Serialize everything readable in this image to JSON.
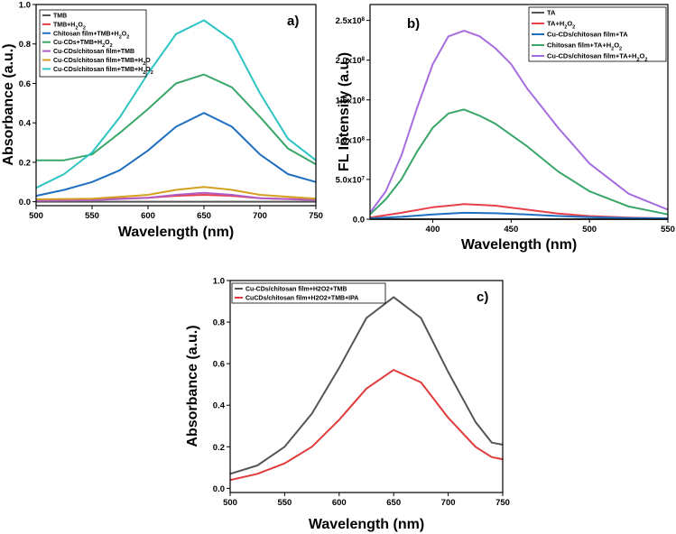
{
  "chart_data": [
    {
      "type": "line",
      "panel_label": "a)",
      "xlabel": "Wavelength (nm)",
      "ylabel": "Absorbance (a.u.)",
      "xlim": [
        500,
        750
      ],
      "ylim": [
        -0.02,
        1.0
      ],
      "xticks": [
        "500",
        "550",
        "600",
        "650",
        "700",
        "750"
      ],
      "yticks": [
        "0.0",
        "0.2",
        "0.4",
        "0.6",
        "0.8",
        "1.0"
      ],
      "legend_position": "top-left",
      "series": [
        {
          "name": "TMB",
          "legend": [
            "TMB"
          ],
          "color": "#555555",
          "x": [
            500,
            550,
            600,
            650,
            700,
            750
          ],
          "y": [
            0.0,
            0.0,
            0.0,
            0.0,
            0.0,
            0.0
          ]
        },
        {
          "name": "TMB+H2O2",
          "legend": [
            "TMB+H",
            "2",
            "O",
            "2",
            ""
          ],
          "color": "#e8404a",
          "x": [
            500,
            550,
            600,
            625,
            650,
            675,
            700,
            750
          ],
          "y": [
            0.01,
            0.012,
            0.02,
            0.03,
            0.035,
            0.03,
            0.018,
            0.01
          ]
        },
        {
          "name": "Chitosan film+TMB+H2O2",
          "legend": [
            "Chitosan film+TMB+H",
            "2",
            "O",
            "2",
            ""
          ],
          "color": "#1f6fc0",
          "x": [
            500,
            525,
            550,
            575,
            600,
            625,
            650,
            675,
            700,
            725,
            750
          ],
          "y": [
            0.03,
            0.06,
            0.1,
            0.16,
            0.26,
            0.38,
            0.45,
            0.38,
            0.24,
            0.14,
            0.1
          ]
        },
        {
          "name": "Cu-CDs+TMB+H2O2",
          "legend": [
            "Cu-CDs+TMB+H",
            "2",
            "O",
            "2",
            ""
          ],
          "color": "#3aa66a",
          "x": [
            500,
            525,
            550,
            575,
            600,
            625,
            650,
            675,
            700,
            725,
            750
          ],
          "y": [
            0.21,
            0.21,
            0.24,
            0.35,
            0.47,
            0.6,
            0.645,
            0.58,
            0.43,
            0.27,
            0.19
          ]
        },
        {
          "name": "Cu-CDs/chitosan film+TMB",
          "legend": [
            "Cu-CDs/chitosan film+TMB"
          ],
          "color": "#b05ec6",
          "x": [
            500,
            550,
            600,
            625,
            650,
            675,
            700,
            750
          ],
          "y": [
            0.005,
            0.008,
            0.02,
            0.035,
            0.045,
            0.035,
            0.018,
            0.008
          ]
        },
        {
          "name": "Cu-CDs/chitosan film+TMB+H2O",
          "legend": [
            "Cu-CDs/chitosan film+TMB+H",
            "2",
            "O",
            "",
            ""
          ],
          "color": "#d4a020",
          "x": [
            500,
            550,
            600,
            625,
            650,
            675,
            700,
            750
          ],
          "y": [
            0.012,
            0.015,
            0.035,
            0.06,
            0.075,
            0.06,
            0.035,
            0.015
          ]
        },
        {
          "name": "Cu-CDs/chitosan film+TMB+H2O2",
          "legend": [
            "Cu-CDs/chitosan film+TMB+H",
            "2",
            "O",
            "2",
            ""
          ],
          "color": "#2ec4c4",
          "x": [
            500,
            525,
            550,
            575,
            600,
            625,
            650,
            675,
            700,
            725,
            750
          ],
          "y": [
            0.07,
            0.14,
            0.25,
            0.43,
            0.65,
            0.85,
            0.92,
            0.82,
            0.55,
            0.32,
            0.21
          ]
        }
      ]
    },
    {
      "type": "line",
      "panel_label": "b)",
      "xlabel": "Wavelength (nm)",
      "ylabel": "FL Intensity (a.u.)",
      "xlim": [
        360,
        550
      ],
      "ylim": [
        0,
        270000000.0
      ],
      "xticks": [
        "400",
        "450",
        "500",
        "550"
      ],
      "yticks": [
        {
          "value": 0,
          "mant": "0.0",
          "sup": ""
        },
        {
          "value": 50000000.0,
          "mant": "5.0x10",
          "sup": "7"
        },
        {
          "value": 100000000.0,
          "mant": "1.0x10",
          "sup": "8"
        },
        {
          "value": 150000000.0,
          "mant": "1.5x10",
          "sup": "8"
        },
        {
          "value": 200000000.0,
          "mant": "2.0x10",
          "sup": "8"
        },
        {
          "value": 250000000.0,
          "mant": "2.5x10",
          "sup": "8"
        }
      ],
      "legend_position": "top-right",
      "series": [
        {
          "name": "TA",
          "legend": [
            "TA"
          ],
          "color": "#555555",
          "x": [
            360,
            400,
            450,
            500,
            550
          ],
          "y": [
            0,
            0,
            0,
            0,
            0
          ]
        },
        {
          "name": "TA+H2O2",
          "legend": [
            "TA+H",
            "2",
            "O",
            "2",
            ""
          ],
          "color": "#e8404a",
          "x": [
            360,
            380,
            400,
            420,
            440,
            460,
            480,
            500,
            525,
            550
          ],
          "y": [
            2000000.0,
            8000000.0,
            15000000.0,
            19000000.0,
            17000000.0,
            12000000.0,
            7000000.0,
            4000000.0,
            2000000.0,
            1000000.0
          ]
        },
        {
          "name": "Cu-CDs/chitosan film+TA",
          "legend": [
            "Cu-CDs/chitosan film+TA"
          ],
          "color": "#1f6fc0",
          "x": [
            360,
            380,
            400,
            420,
            440,
            460,
            480,
            500,
            525,
            550
          ],
          "y": [
            1000000.0,
            3000000.0,
            6000000.0,
            8000000.0,
            7500000.0,
            6000000.0,
            4000000.0,
            2500000.0,
            1500000.0,
            1000000.0
          ]
        },
        {
          "name": "Chitosan film+TA+H2O2",
          "legend": [
            "Chitosan film+TA+H",
            "2",
            "O",
            "2",
            ""
          ],
          "color": "#3aa66a",
          "x": [
            360,
            370,
            380,
            390,
            400,
            410,
            420,
            430,
            440,
            460,
            480,
            500,
            525,
            550
          ],
          "y": [
            6000000.0,
            25000000.0,
            50000000.0,
            85000000.0,
            115000000.0,
            133000000.0,
            138000000.0,
            130000000.0,
            120000000.0,
            92000000.0,
            60000000.0,
            35000000.0,
            16000000.0,
            6000000.0
          ]
        },
        {
          "name": "Cu-CDs/chitosan film+TA+H2O2",
          "legend": [
            "Cu-CDs/chitosan film+TA+H",
            "2",
            "O",
            "2",
            ""
          ],
          "color": "#a66de0",
          "x": [
            360,
            370,
            380,
            390,
            400,
            410,
            420,
            430,
            440,
            450,
            460,
            470,
            480,
            500,
            525,
            550
          ],
          "y": [
            8000000.0,
            35000000.0,
            80000000.0,
            140000000.0,
            195000000.0,
            230000000.0,
            237000000.0,
            230000000.0,
            215000000.0,
            195000000.0,
            165000000.0,
            140000000.0,
            115000000.0,
            70000000.0,
            32000000.0,
            12000000.0
          ]
        }
      ]
    },
    {
      "type": "line",
      "panel_label": "c)",
      "xlabel": "Wavelength (nm)",
      "ylabel": "Absorbance (a.u.)",
      "xlim": [
        500,
        750
      ],
      "ylim": [
        -0.02,
        1.0
      ],
      "xticks": [
        "500",
        "550",
        "600",
        "650",
        "700",
        "750"
      ],
      "yticks": [
        "0.0",
        "0.2",
        "0.4",
        "0.6",
        "0.8",
        "1.0"
      ],
      "legend_position": "top-left",
      "series": [
        {
          "name": "Cu-CDs/chitosan film+H2O2+TMB",
          "legend": [
            "Cu-CDs/chitosan film+H2O2+TMB"
          ],
          "color": "#555555",
          "x": [
            500,
            525,
            550,
            575,
            600,
            625,
            650,
            675,
            700,
            725,
            740,
            750
          ],
          "y": [
            0.07,
            0.11,
            0.2,
            0.36,
            0.58,
            0.82,
            0.92,
            0.82,
            0.56,
            0.32,
            0.22,
            0.21
          ]
        },
        {
          "name": "CuCDs/chitosan film+H2O2+TMB+IPA",
          "legend": [
            "CuCDs/chitosan film+H2O2+TMB+IPA"
          ],
          "color": "#e03a3a",
          "x": [
            500,
            525,
            550,
            575,
            600,
            625,
            650,
            675,
            700,
            725,
            740,
            750
          ],
          "y": [
            0.04,
            0.07,
            0.12,
            0.2,
            0.33,
            0.48,
            0.57,
            0.51,
            0.34,
            0.2,
            0.15,
            0.14
          ]
        }
      ]
    }
  ]
}
